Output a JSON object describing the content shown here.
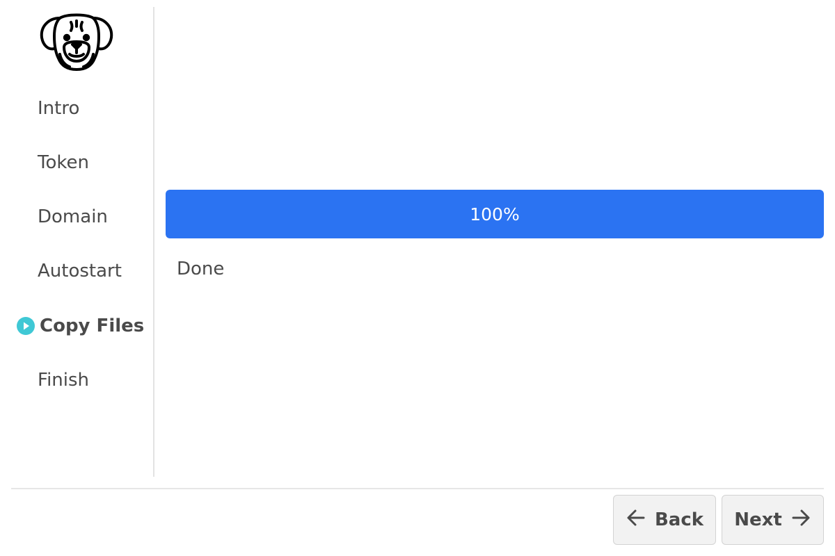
{
  "sidebar": {
    "logo": "boxer-dog-logo",
    "steps": [
      {
        "label": "Intro"
      },
      {
        "label": "Token"
      },
      {
        "label": "Domain"
      },
      {
        "label": "Autostart"
      },
      {
        "label": "Copy Files",
        "active": true
      },
      {
        "label": "Finish"
      }
    ],
    "active_marker_icon": "play-circle-icon"
  },
  "main": {
    "progress": {
      "label": "100%",
      "value": 1.0,
      "color": "#2b73f2"
    },
    "status": "Done"
  },
  "footer": {
    "back_label": "Back",
    "back_icon": "arrow-left-icon",
    "next_label": "Next",
    "next_icon": "arrow-right-icon"
  },
  "colors": {
    "accent": "#2b73f2",
    "active_marker": "#3fc8d5",
    "text": "#4a4a4a"
  }
}
